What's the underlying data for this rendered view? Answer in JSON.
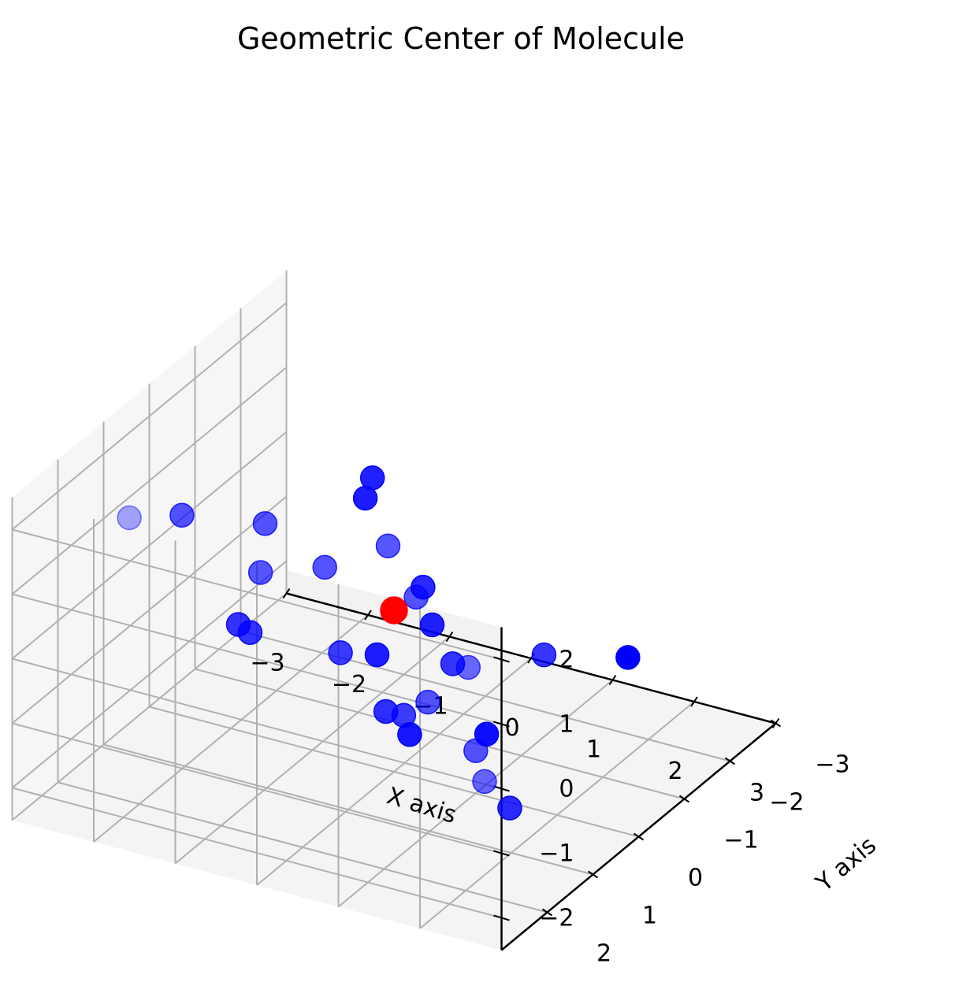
{
  "chart_data": {
    "type": "scatter",
    "title": "Geometric Center of Molecule",
    "xlabel": "X axis",
    "ylabel": "Y axis",
    "zlabel": "",
    "xlim": [
      -3,
      3
    ],
    "ylim": [
      -3,
      3
    ],
    "zlim": [
      -2.5,
      2.5
    ],
    "xticks": [
      "−3",
      "−2",
      "−1",
      "0",
      "1",
      "2",
      "3"
    ],
    "yticks": [
      "−3",
      "−2",
      "−1",
      "0",
      "1",
      "2"
    ],
    "zticks": [
      "−2",
      "−1",
      "0",
      "1",
      "2"
    ],
    "grid": true,
    "colors": {
      "atoms": "#0000ff",
      "center": "#ff0000"
    },
    "series": [
      {
        "points": [
          {
            "x": -1.9,
            "y": 2.4,
            "z": 2.2
          },
          {
            "x": 2.2,
            "y": 2.3,
            "z": 1.2
          },
          {
            "x": 0.6,
            "y": 1.2,
            "z": 1.9
          },
          {
            "x": -0.4,
            "y": 0.8,
            "z": 1.0
          },
          {
            "x": 1.0,
            "y": 1.3,
            "z": 1.3
          },
          {
            "x": -1.3,
            "y": 0.5,
            "z": 1.2
          },
          {
            "x": -0.6,
            "y": -0.6,
            "z": 1.5
          },
          {
            "x": -1.3,
            "y": 0.6,
            "z": 0.5
          },
          {
            "x": -0.8,
            "y": -0.8,
            "z": 1.0
          },
          {
            "x": -2.6,
            "y": 0.0,
            "z": 0.6
          },
          {
            "x": 2.4,
            "y": 1.0,
            "z": 0.7
          },
          {
            "x": 2.7,
            "y": -0.3,
            "z": 0.0
          },
          {
            "x": 2.4,
            "y": 2.3,
            "z": -0.5
          },
          {
            "x": 1.9,
            "y": 1.6,
            "z": -0.6
          },
          {
            "x": 1.2,
            "y": 1.4,
            "z": -0.2
          },
          {
            "x": 0.3,
            "y": -0.1,
            "z": 0.4
          },
          {
            "x": 1.0,
            "y": 0.5,
            "z": -0.2
          },
          {
            "x": 0.3,
            "y": -0.3,
            "z": -0.3
          },
          {
            "x": 0.4,
            "y": 0.5,
            "z": -1.2
          },
          {
            "x": -0.6,
            "y": 0.1,
            "z": -0.8
          },
          {
            "x": -0.6,
            "y": -0.7,
            "z": -1.3
          },
          {
            "x": -0.1,
            "y": 0.0,
            "z": -1.6
          },
          {
            "x": -2.3,
            "y": -0.7,
            "z": -1.4
          },
          {
            "x": -2.1,
            "y": -0.6,
            "z": -1.4
          },
          {
            "x": 0.8,
            "y": -0.6,
            "z": -2.0
          },
          {
            "x": 1.7,
            "y": 0.5,
            "z": -2.2
          },
          {
            "x": -0.2,
            "y": -0.7,
            "z": -2.4
          }
        ]
      },
      {
        "points": [
          {
            "x": 0.0,
            "y": 0.0,
            "z": 0.0
          }
        ]
      }
    ]
  }
}
